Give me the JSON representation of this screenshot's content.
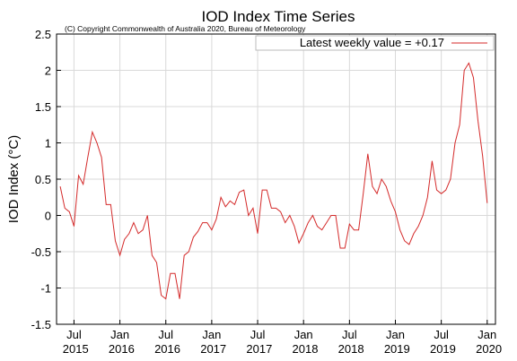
{
  "chart_data": {
    "type": "line",
    "title": "IOD Index Time Series",
    "subtitle": "(C) Copyright Commonwealth of Australia 2020, Bureau of Meteorology",
    "y_label": "IOD Index (°C)",
    "x": [
      2015.35,
      2015.4,
      2015.45,
      2015.5,
      2015.55,
      2015.6,
      2015.65,
      2015.7,
      2015.75,
      2015.8,
      2015.85,
      2015.9,
      2015.95,
      2016,
      2016.05,
      2016.1,
      2016.15,
      2016.2,
      2016.25,
      2016.3,
      2016.35,
      2016.4,
      2016.45,
      2016.5,
      2016.55,
      2016.6,
      2016.65,
      2016.7,
      2016.75,
      2016.8,
      2016.85,
      2016.9,
      2016.95,
      2017,
      2017.05,
      2017.1,
      2017.15,
      2017.2,
      2017.25,
      2017.3,
      2017.35,
      2017.4,
      2017.45,
      2017.5,
      2017.55,
      2017.6,
      2017.65,
      2017.7,
      2017.75,
      2017.8,
      2017.85,
      2017.9,
      2017.95,
      2018,
      2018.05,
      2018.1,
      2018.15,
      2018.2,
      2018.25,
      2018.3,
      2018.35,
      2018.4,
      2018.45,
      2018.5,
      2018.55,
      2018.6,
      2018.65,
      2018.7,
      2018.75,
      2018.8,
      2018.85,
      2018.9,
      2018.95,
      2019,
      2019.05,
      2019.1,
      2019.15,
      2019.2,
      2019.25,
      2019.3,
      2019.35,
      2019.4,
      2019.45,
      2019.5,
      2019.55,
      2019.6,
      2019.65,
      2019.7,
      2019.75,
      2019.8,
      2019.85,
      2019.9,
      2019.95,
      2020
    ],
    "series": [
      {
        "name": "Latest weekly value = +0.17",
        "color": "#d42a2a",
        "values": [
          0.4,
          0.1,
          0.05,
          -0.15,
          0.55,
          0.43,
          0.8,
          1.15,
          1.0,
          0.8,
          0.15,
          0.15,
          -0.35,
          -0.55,
          -0.33,
          -0.25,
          -0.1,
          -0.25,
          -0.2,
          0.0,
          -0.55,
          -0.65,
          -1.1,
          -1.15,
          -0.8,
          -0.8,
          -1.15,
          -0.55,
          -0.5,
          -0.3,
          -0.22,
          -0.1,
          -0.1,
          -0.2,
          -0.05,
          0.25,
          0.12,
          0.2,
          0.15,
          0.32,
          0.35,
          0.0,
          0.1,
          -0.25,
          0.35,
          0.35,
          0.1,
          0.1,
          0.05,
          -0.1,
          0.0,
          -0.15,
          -0.38,
          -0.25,
          -0.1,
          0.0,
          -0.15,
          -0.2,
          -0.1,
          0.0,
          0.0,
          -0.45,
          -0.45,
          -0.12,
          -0.2,
          -0.2,
          0.3,
          0.85,
          0.4,
          0.3,
          0.5,
          0.4,
          0.2,
          0.05,
          -0.2,
          -0.35,
          -0.4,
          -0.25,
          -0.15,
          0.0,
          0.25,
          0.75,
          0.35,
          0.3,
          0.35,
          0.5,
          1.0,
          1.25,
          2.0,
          2.1,
          1.9,
          1.3,
          0.82,
          0.17
        ]
      }
    ],
    "xlim": [
      2015.31,
      2020.09
    ],
    "xticks": [
      {
        "value": 2015.5,
        "label": "Jul 2015"
      },
      {
        "value": 2016,
        "label": "Jan 2016"
      },
      {
        "value": 2016.5,
        "label": "Jul 2016"
      },
      {
        "value": 2017,
        "label": "Jan 2017"
      },
      {
        "value": 2017.5,
        "label": "Jul 2017"
      },
      {
        "value": 2018,
        "label": "Jan 2018"
      },
      {
        "value": 2018.5,
        "label": "Jul 2018"
      },
      {
        "value": 2019,
        "label": "Jan 2019"
      },
      {
        "value": 2019.5,
        "label": "Jul 2019"
      },
      {
        "value": 2020,
        "label": "Jan 2020"
      }
    ],
    "ylim": [
      -1.5,
      2.5
    ],
    "yticks": [
      -1.5,
      -1,
      -0.5,
      0,
      0.5,
      1,
      1.5,
      2,
      2.5
    ],
    "grid": true,
    "legend": "top-right"
  }
}
